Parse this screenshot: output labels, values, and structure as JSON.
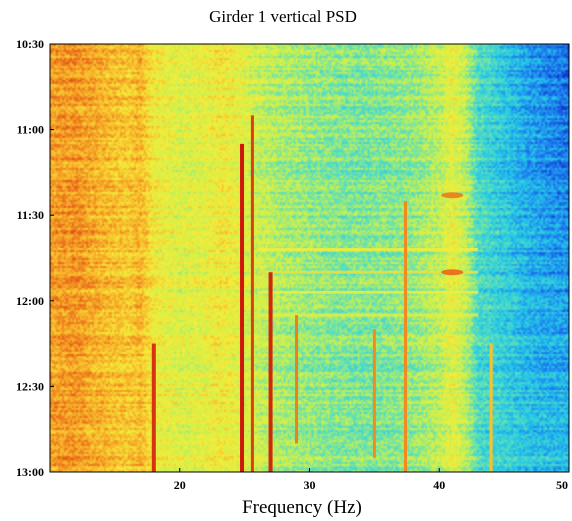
{
  "chart_data": {
    "type": "heatmap",
    "title": "Girder 1 vertical PSD",
    "xlabel": "Frequency (Hz)",
    "ylabel": "",
    "x_range": [
      10,
      50
    ],
    "x_ticks": [
      20,
      30,
      40,
      50
    ],
    "x_tick_labels": [
      "20",
      "30",
      "40",
      "50"
    ],
    "y_ticks": [
      "10:30",
      "11:00",
      "11:30",
      "12:00",
      "12:30",
      "13:00"
    ],
    "y_range": [
      "10:30",
      "13:00"
    ],
    "grid": false,
    "colormap": "jet",
    "colormap_stops": [
      "#0b2fc8",
      "#1e7cf0",
      "#22c8e8",
      "#5fe0b8",
      "#c8f050",
      "#f4ee3a",
      "#f8b42a",
      "#ea6a1a",
      "#cc1a0a"
    ],
    "intensity_bands_by_frequency": [
      {
        "frequency": 10,
        "level": 0.78
      },
      {
        "frequency": 12,
        "level": 0.8
      },
      {
        "frequency": 14,
        "level": 0.74
      },
      {
        "frequency": 16,
        "level": 0.7
      },
      {
        "frequency": 17,
        "level": 0.74
      },
      {
        "frequency": 18,
        "level": 0.62
      },
      {
        "frequency": 20,
        "level": 0.56
      },
      {
        "frequency": 22,
        "level": 0.58
      },
      {
        "frequency": 23,
        "level": 0.62
      },
      {
        "frequency": 24,
        "level": 0.6
      },
      {
        "frequency": 26,
        "level": 0.52
      },
      {
        "frequency": 28,
        "level": 0.47
      },
      {
        "frequency": 30,
        "level": 0.44
      },
      {
        "frequency": 32,
        "level": 0.42
      },
      {
        "frequency": 34,
        "level": 0.41
      },
      {
        "frequency": 36,
        "level": 0.42
      },
      {
        "frequency": 38,
        "level": 0.44
      },
      {
        "frequency": 40,
        "level": 0.5
      },
      {
        "frequency": 41,
        "level": 0.58
      },
      {
        "frequency": 42,
        "level": 0.5
      },
      {
        "frequency": 43,
        "level": 0.34
      },
      {
        "frequency": 45,
        "level": 0.3
      },
      {
        "frequency": 47,
        "level": 0.26
      },
      {
        "frequency": 50,
        "level": 0.24
      }
    ],
    "resonance_lines": [
      {
        "frequency": 18.0,
        "level": 0.96,
        "from": "12:15",
        "to": "13:00"
      },
      {
        "frequency": 24.8,
        "level": 1.0,
        "from": "11:05",
        "to": "13:00"
      },
      {
        "frequency": 25.6,
        "level": 0.94,
        "from": "10:55",
        "to": "13:00"
      },
      {
        "frequency": 27.0,
        "level": 0.98,
        "from": "11:50",
        "to": "13:00"
      },
      {
        "frequency": 29.0,
        "level": 0.84,
        "from": "12:05",
        "to": "12:50"
      },
      {
        "frequency": 35.0,
        "level": 0.82,
        "from": "12:10",
        "to": "12:55"
      },
      {
        "frequency": 37.4,
        "level": 0.82,
        "from": "11:25",
        "to": "13:00"
      },
      {
        "frequency": 44.0,
        "level": 0.72,
        "from": "12:15",
        "to": "13:00"
      }
    ],
    "horizontal_bands": [
      {
        "time": "11:42",
        "level": 0.62
      },
      {
        "time": "11:50",
        "level": 0.66
      },
      {
        "time": "11:57",
        "level": 0.62
      },
      {
        "time": "12:05",
        "level": 0.58
      }
    ],
    "hot_spots": [
      {
        "frequency": 41.0,
        "time": "11:23",
        "level": 0.85
      },
      {
        "frequency": 41.0,
        "time": "11:50",
        "level": 0.88
      }
    ]
  }
}
